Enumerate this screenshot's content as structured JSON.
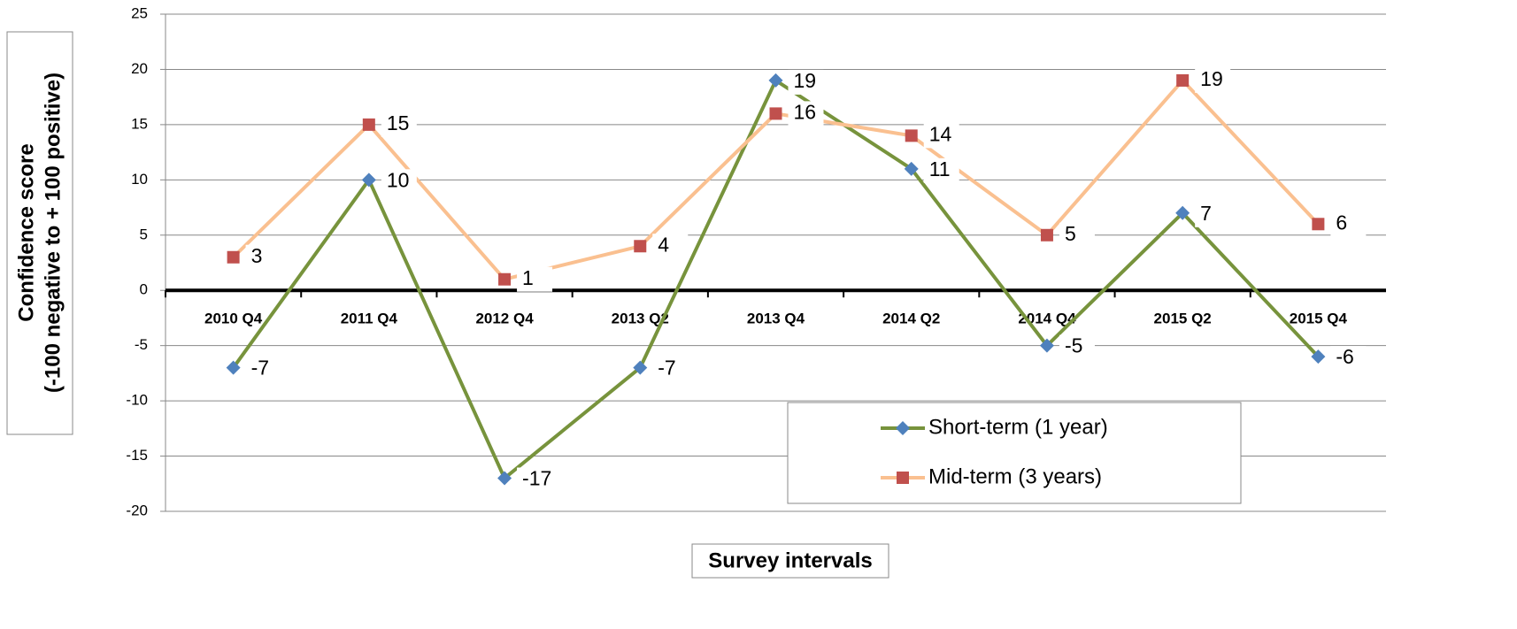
{
  "chart_data": {
    "type": "line",
    "x_label": "Survey intervals",
    "y_label": [
      "Confidence score",
      "(-100 negative to + 100 positive)"
    ],
    "categories": [
      "2010 Q4",
      "2011 Q4",
      "2012 Q4",
      "2013 Q2",
      "2013 Q4",
      "2014 Q2",
      "2014 Q4",
      "2015 Q2",
      "2015 Q4"
    ],
    "series": [
      {
        "name": "Short-term (1 year)",
        "color": "#77933c",
        "marker_color": "#4f81bd",
        "marker": "diamond",
        "values": [
          -7,
          10,
          -17,
          -7,
          19,
          11,
          -5,
          7,
          -6
        ]
      },
      {
        "name": "Mid-term (3 years)",
        "color": "#fac090",
        "marker_color": "#c0504d",
        "marker": "square",
        "values": [
          3,
          15,
          1,
          4,
          16,
          14,
          5,
          19,
          6
        ]
      }
    ],
    "ylim": [
      -20,
      25
    ],
    "yticks": [
      -20,
      -15,
      -10,
      -5,
      0,
      5,
      10,
      15,
      20,
      25
    ],
    "grid": true,
    "legend": "lower right"
  }
}
